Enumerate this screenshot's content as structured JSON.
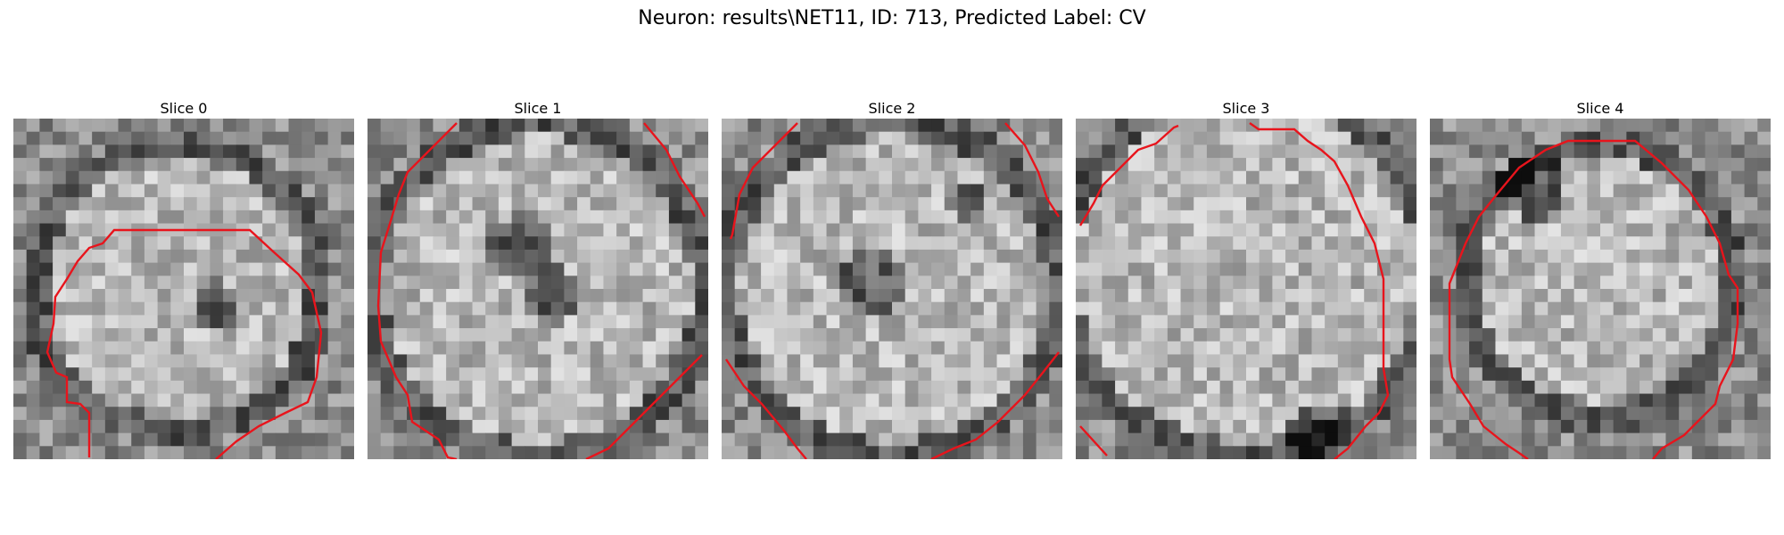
{
  "figure": {
    "title": "Neuron: results\\NET11, ID: 713, Predicted Label: CV"
  },
  "slices": [
    {
      "label": "Slice 0"
    },
    {
      "label": "Slice 1"
    },
    {
      "label": "Slice 2"
    },
    {
      "label": "Slice 3"
    },
    {
      "label": "Slice 4"
    }
  ],
  "style": {
    "contour_color": "#e8141c"
  }
}
